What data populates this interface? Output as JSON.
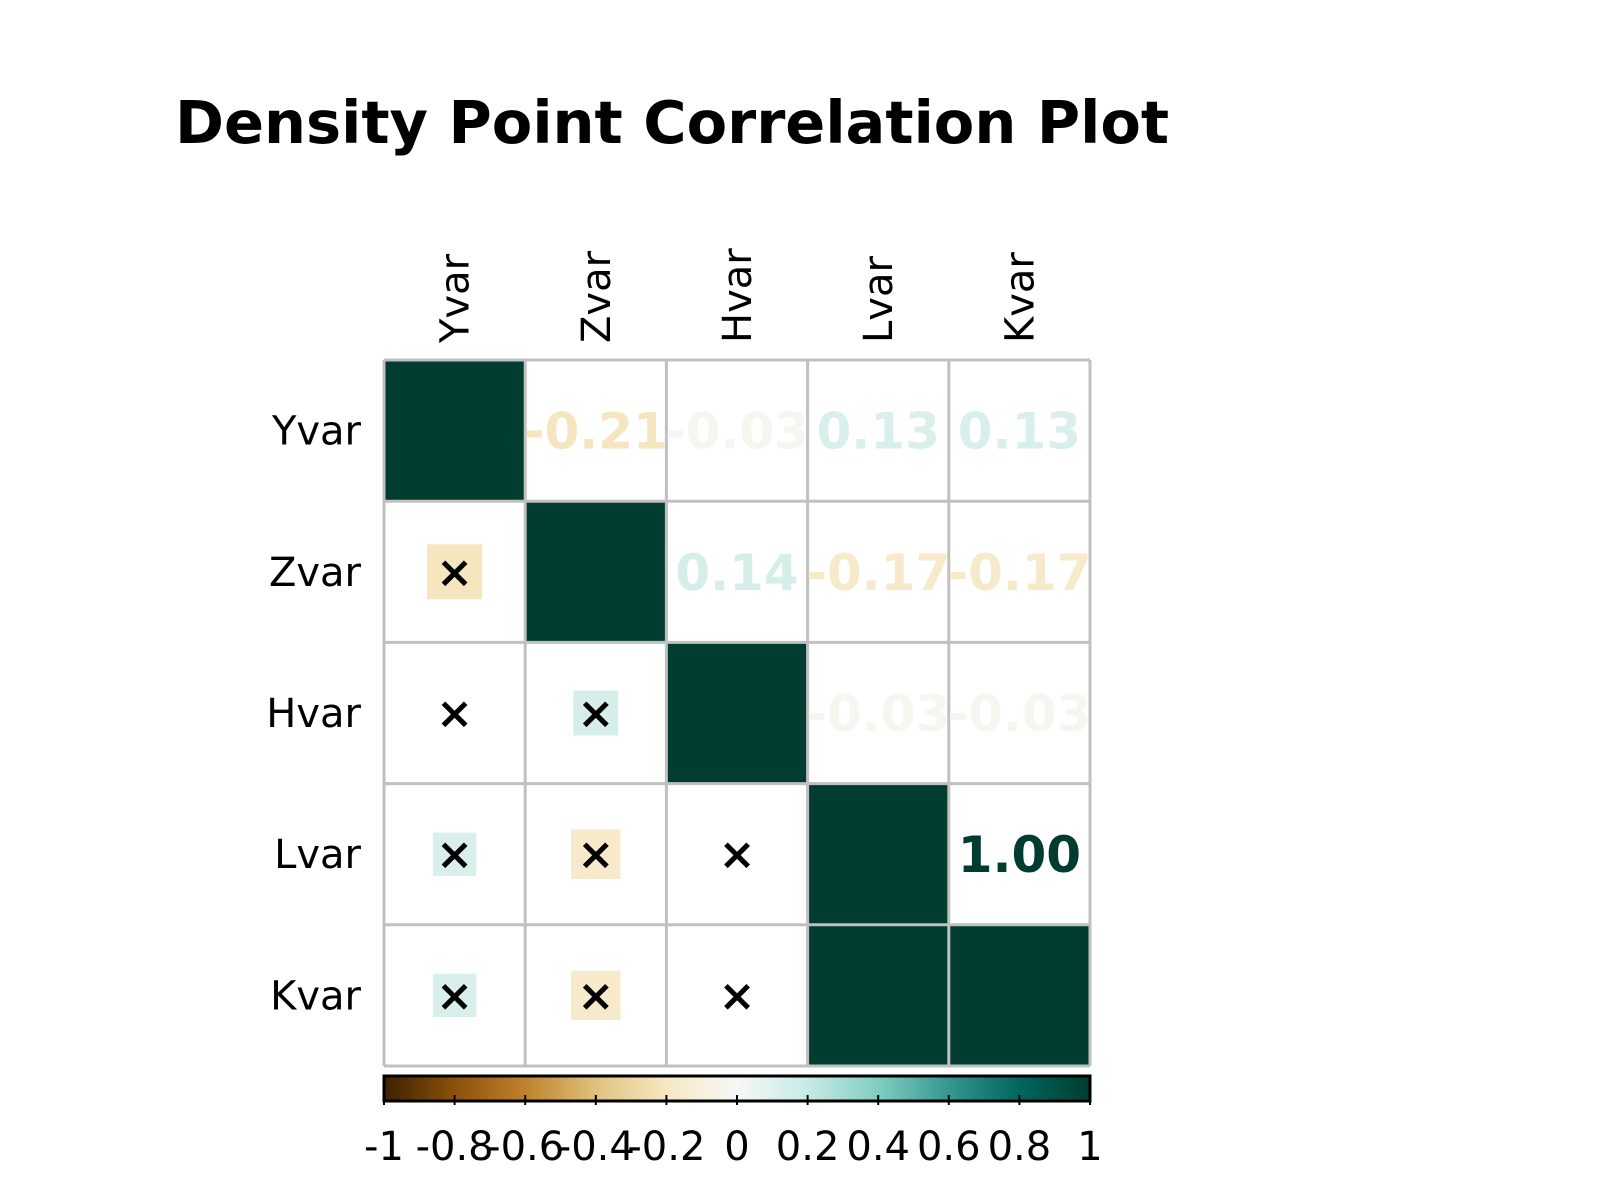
{
  "chart_data": {
    "type": "heatmap",
    "title": "Density Point Correlation Plot",
    "variables": [
      "Yvar",
      "Zvar",
      "Hvar",
      "Lvar",
      "Kvar"
    ],
    "matrix": [
      [
        1.0,
        -0.21,
        -0.03,
        0.13,
        0.13
      ],
      [
        -0.21,
        1.0,
        0.14,
        -0.17,
        -0.17
      ],
      [
        -0.03,
        0.14,
        1.0,
        -0.03,
        -0.03
      ],
      [
        0.13,
        -0.17,
        -0.03,
        1.0,
        1.0
      ],
      [
        0.13,
        -0.17,
        -0.03,
        1.0,
        1.0
      ]
    ],
    "upper_labels": [
      [
        "",
        "-0.21",
        "-0.03",
        "0.13",
        "0.13"
      ],
      [
        "",
        "",
        "0.14",
        "-0.17",
        "-0.17"
      ],
      [
        "",
        "",
        "",
        "-0.03",
        "-0.03"
      ],
      [
        "",
        "",
        "",
        "",
        "1.00"
      ],
      [
        "",
        "",
        "",
        "",
        ""
      ]
    ],
    "lower_marker": "×",
    "colorbar": {
      "range": [
        -1,
        1
      ],
      "ticks": [
        "-1",
        "-0.8",
        "-0.6",
        "-0.4",
        "-0.2",
        "0",
        "0.2",
        "0.4",
        "0.6",
        "0.8",
        "1"
      ]
    },
    "colors": {
      "negative_end": "#3d2100",
      "positive_end": "#003c30",
      "grid": "#c0c0c0"
    }
  }
}
